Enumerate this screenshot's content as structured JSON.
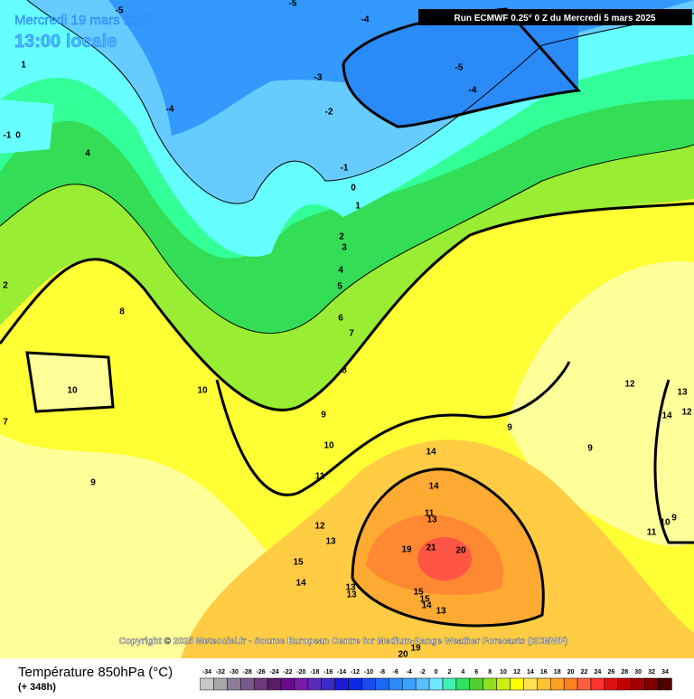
{
  "header": {
    "date": "Mercredi 19 mars 2025",
    "time": "13:00 locale",
    "run": "Run ECMWF 0.25° 0 Z du Mercredi 5 mars 2025"
  },
  "copyright": "Copyright © 2025 Meteociel.fr - Source European Centre for Medium-Range Weather Forecasts (ECMWF)",
  "footer": {
    "variable": "Température 850hPa (°C)",
    "lead": "(+ 348h)"
  },
  "scale": {
    "ticks": [
      -34,
      -32,
      -30,
      -28,
      -26,
      -24,
      -22,
      -20,
      -18,
      -16,
      -14,
      -12,
      -10,
      -8,
      -6,
      -4,
      -2,
      0,
      2,
      4,
      6,
      8,
      10,
      12,
      14,
      16,
      18,
      20,
      22,
      24,
      26,
      28,
      30,
      32,
      34
    ],
    "colors": [
      "#c8c8c8",
      "#a8a8a8",
      "#8c7c98",
      "#7a5a8c",
      "#6a3a7a",
      "#5a1a6a",
      "#6a0a8a",
      "#7a1aaa",
      "#5a2ab8",
      "#3a2ac8",
      "#1a1ad8",
      "#0a2ae8",
      "#1a4af0",
      "#1a6af8",
      "#2a8af8",
      "#3aa0ff",
      "#5ac0ff",
      "#70e8ff",
      "#40f0b0",
      "#30e060",
      "#50d030",
      "#90e020",
      "#c8f010",
      "#ffff00",
      "#ffe050",
      "#ffc030",
      "#ffa020",
      "#ff8020",
      "#ff6040",
      "#ff3030",
      "#e01010",
      "#c00000",
      "#a00000",
      "#800000",
      "#500000"
    ]
  },
  "contour_labels": [
    -5,
    -4,
    -5,
    1,
    -3,
    -4,
    -2,
    -5,
    -4,
    -1,
    0,
    4,
    -1,
    0,
    1,
    2,
    3,
    4,
    5,
    2,
    6,
    8,
    7,
    8,
    10,
    10,
    7,
    9,
    10,
    9,
    9,
    12,
    13,
    14,
    12,
    14,
    11,
    9,
    14,
    11,
    13,
    10,
    9,
    11,
    12,
    13,
    19,
    21,
    20,
    15,
    14,
    13,
    13,
    15,
    15,
    14,
    13,
    19,
    20
  ]
}
